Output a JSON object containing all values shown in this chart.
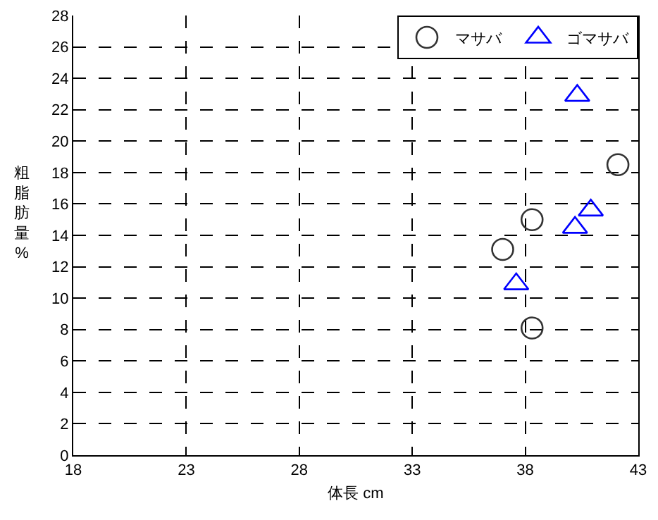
{
  "chart_data": {
    "type": "scatter",
    "xlabel": "体長 cm",
    "ylabel": "粗脂肪量%",
    "xlim": [
      18,
      43
    ],
    "xticks": [
      18,
      23,
      28,
      33,
      38,
      43
    ],
    "ylim": [
      0,
      28
    ],
    "yticks": [
      0,
      2,
      4,
      6,
      8,
      10,
      12,
      14,
      16,
      18,
      20,
      22,
      24,
      26,
      28
    ],
    "grid": true,
    "legend": "top right",
    "series": [
      {
        "name": "マサバ",
        "color": "#333333",
        "marker": "circle",
        "x": [
          37.0,
          38.3,
          38.3,
          42.1
        ],
        "values": [
          13.1,
          15.0,
          8.1,
          18.5
        ]
      },
      {
        "name": "ゴマサバ",
        "color": "#0000ff",
        "marker": "triangle",
        "x": [
          37.6,
          40.2,
          40.3,
          40.9
        ],
        "values": [
          10.9,
          14.5,
          22.9,
          15.6
        ]
      }
    ]
  }
}
